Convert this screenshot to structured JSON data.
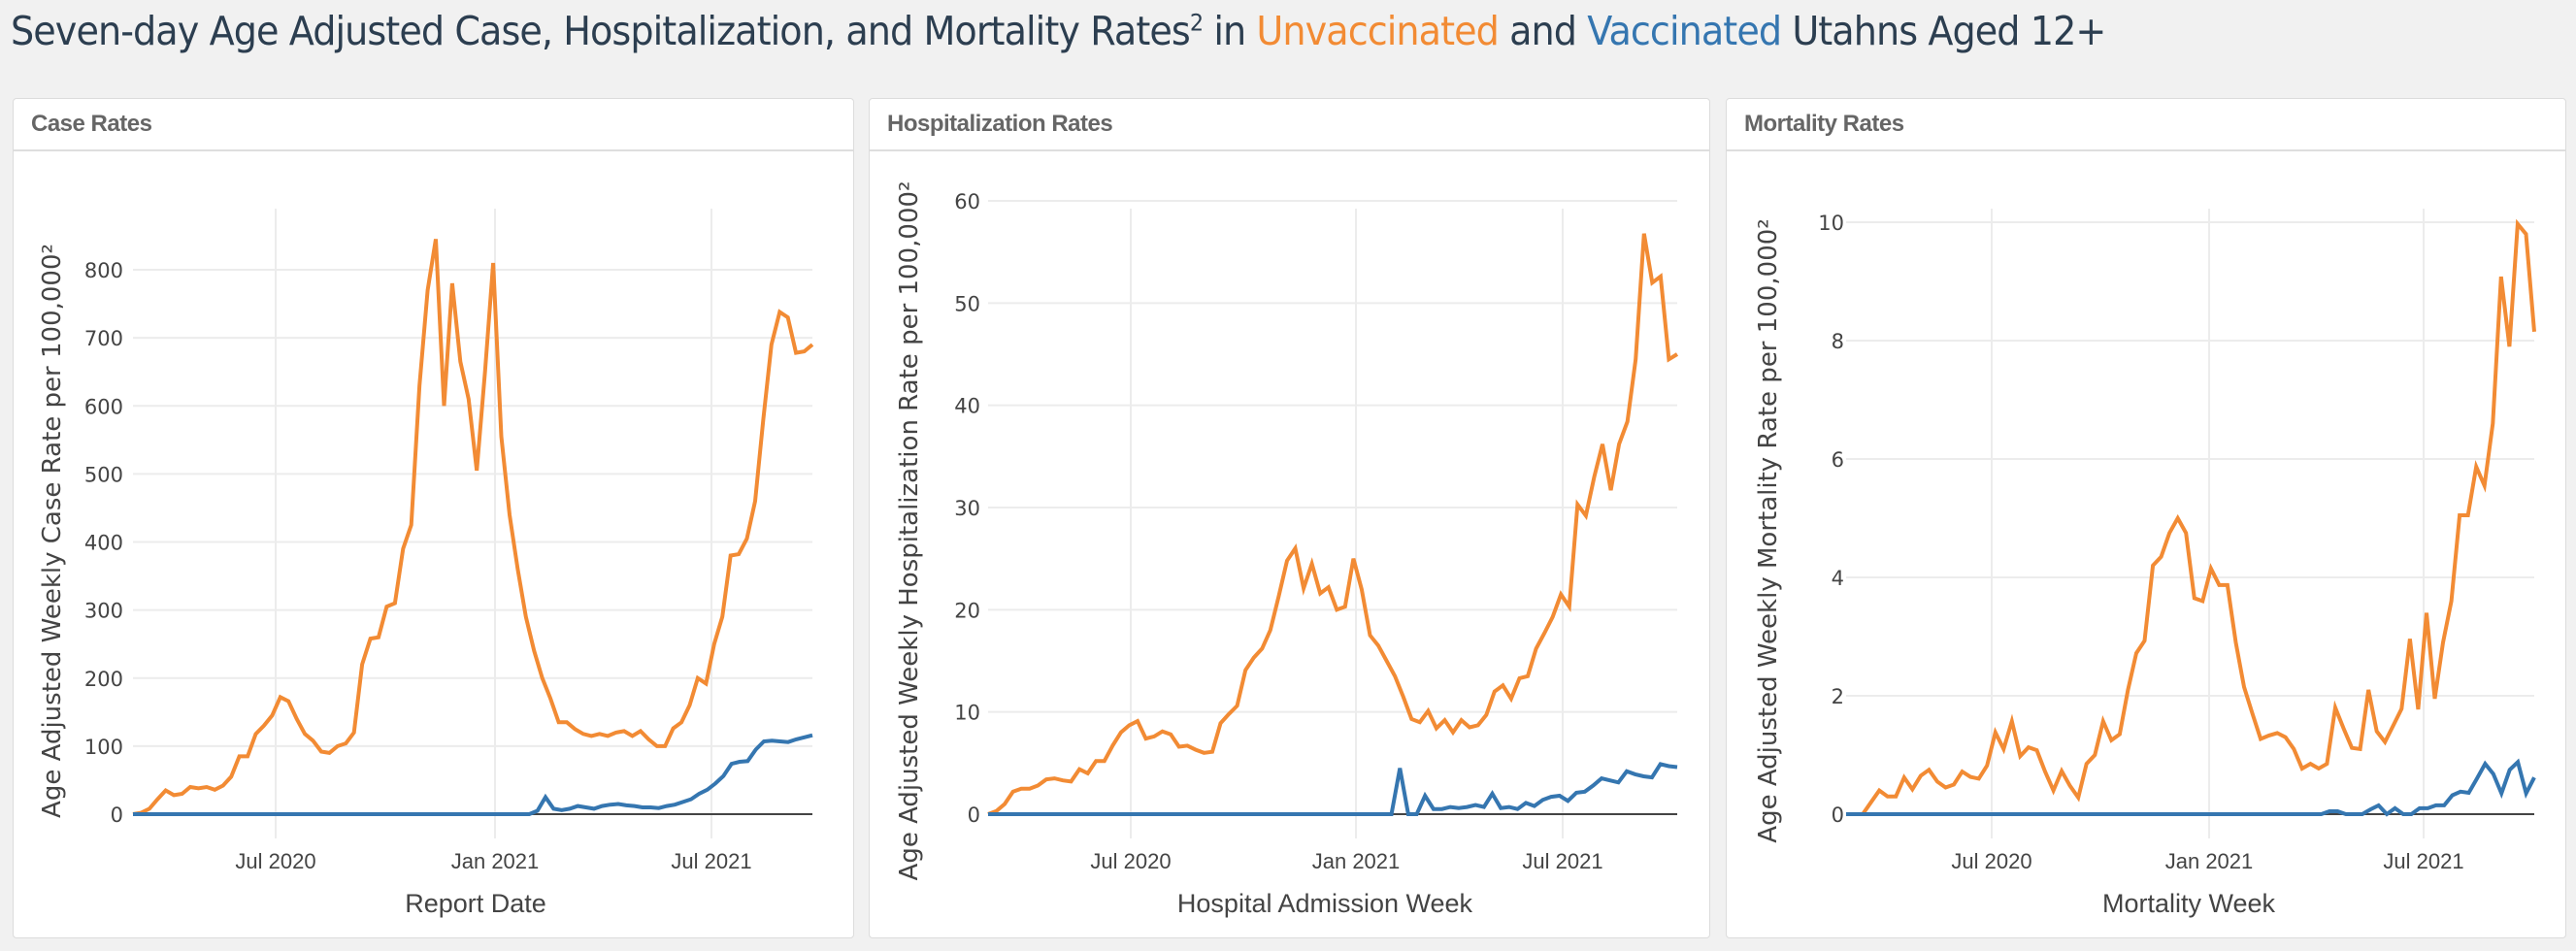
{
  "page": {
    "title_parts": {
      "prefix": "Seven-day Age Adjusted Case, Hospitalization, and Mortality Rates",
      "sup": "2",
      "in": " in ",
      "unvaccinated": "Unvaccinated",
      "and": " and ",
      "vaccinated": "Vaccinated",
      "suffix": " Utahns Aged 12+"
    }
  },
  "colors": {
    "unvaccinated": "#f28b34",
    "vaccinated": "#3576b0",
    "title_text": "#2c3e50"
  },
  "panels": [
    {
      "header": "Case Rates"
    },
    {
      "header": "Hospitalization Rates"
    },
    {
      "header": "Mortality Rates"
    }
  ],
  "chart_data": [
    {
      "type": "line",
      "title": "Case Rates",
      "xlabel": "Report Date",
      "ylabel": "Age Adjusted Weekly Case Rate per 100,000²",
      "x_start": "2020-03-15",
      "x_step_days": 7,
      "x_ticks": [
        "Jul 2020",
        "Jan 2021",
        "Jul 2021"
      ],
      "y_ticks": [
        0,
        100,
        200,
        300,
        400,
        500,
        600,
        700,
        800
      ],
      "ylim": [
        0,
        870
      ],
      "grid": true,
      "series": [
        {
          "name": "Unvaccinated",
          "values": [
            0,
            2,
            8,
            22,
            35,
            28,
            30,
            40,
            38,
            40,
            36,
            42,
            55,
            85,
            85,
            118,
            130,
            145,
            172,
            166,
            140,
            118,
            108,
            92,
            90,
            100,
            104,
            120,
            220,
            258,
            260,
            305,
            310,
            390,
            425,
            630,
            770,
            845,
            600,
            780,
            665,
            610,
            505,
            650,
            810,
            555,
            440,
            360,
            290,
            240,
            200,
            170,
            135,
            135,
            125,
            118,
            115,
            118,
            115,
            120,
            122,
            115,
            122,
            110,
            100,
            100,
            126,
            135,
            160,
            200,
            192,
            250,
            290,
            380,
            382,
            405,
            460,
            580,
            690,
            738,
            730,
            678,
            680,
            690
          ]
        },
        {
          "name": "Vaccinated",
          "values": [
            0,
            0,
            0,
            0,
            0,
            0,
            0,
            0,
            0,
            0,
            0,
            0,
            0,
            0,
            0,
            0,
            0,
            0,
            0,
            0,
            0,
            0,
            0,
            0,
            0,
            0,
            0,
            0,
            0,
            0,
            0,
            0,
            0,
            0,
            0,
            0,
            0,
            0,
            0,
            0,
            0,
            0,
            0,
            0,
            0,
            0,
            0,
            0,
            0,
            0,
            5,
            25,
            8,
            6,
            8,
            12,
            10,
            8,
            12,
            14,
            15,
            13,
            12,
            10,
            10,
            9,
            12,
            14,
            18,
            22,
            30,
            36,
            45,
            56,
            74,
            77,
            78,
            95,
            107,
            108,
            107,
            106,
            110,
            113,
            116
          ]
        }
      ]
    },
    {
      "type": "line",
      "title": "Hospitalization Rates",
      "xlabel": "Hospital Admission Week",
      "ylabel": "Age Adjusted Weekly Hospitalization Rate per 100,000²",
      "x_start": "2020-03-15",
      "x_step_days": 7,
      "x_ticks": [
        "Jul 2020",
        "Jan 2021",
        "Jul 2021"
      ],
      "y_ticks": [
        0,
        10,
        20,
        30,
        40,
        50,
        60
      ],
      "ylim": [
        0,
        63
      ],
      "grid": true,
      "series": [
        {
          "name": "Unvaccinated",
          "values": [
            0,
            0.3,
            1,
            2.2,
            2.5,
            2.5,
            2.8,
            3.4,
            3.5,
            3.3,
            3.2,
            4.4,
            4,
            5.2,
            5.2,
            6.7,
            8,
            8.7,
            9.1,
            7.4,
            7.6,
            8.1,
            7.8,
            6.6,
            6.7,
            6.3,
            6,
            6.1,
            8.9,
            9.8,
            10.6,
            14.1,
            15.3,
            16.2,
            18,
            21.3,
            24.8,
            26,
            22.1,
            24.5,
            21.6,
            22.2,
            20,
            20.3,
            25,
            22,
            17.5,
            16.5,
            15,
            13.5,
            11.5,
            9.3,
            9,
            10.1,
            8.4,
            9.2,
            8,
            9.2,
            8.5,
            8.7,
            9.7,
            12,
            12.6,
            11.3,
            13.3,
            13.5,
            16.2,
            17.7,
            19.3,
            21.5,
            20.3,
            30.3,
            29.2,
            33,
            36.2,
            31.7,
            36.2,
            38.4,
            44.5,
            56.8,
            52,
            52.6,
            44.5,
            45
          ]
        },
        {
          "name": "Vaccinated",
          "values": [
            0,
            0,
            0,
            0,
            0,
            0,
            0,
            0,
            0,
            0,
            0,
            0,
            0,
            0,
            0,
            0,
            0,
            0,
            0,
            0,
            0,
            0,
            0,
            0,
            0,
            0,
            0,
            0,
            0,
            0,
            0,
            0,
            0,
            0,
            0,
            0,
            0,
            0,
            0,
            0,
            0,
            0,
            0,
            0,
            0,
            0,
            0,
            0,
            0,
            4.5,
            0,
            0,
            1.8,
            0.5,
            0.5,
            0.7,
            0.6,
            0.7,
            0.9,
            0.7,
            2,
            0.6,
            0.7,
            0.5,
            1.1,
            0.8,
            1.4,
            1.7,
            1.8,
            1.3,
            2.1,
            2.2,
            2.8,
            3.5,
            3.3,
            3.1,
            4.2,
            3.9,
            3.7,
            3.6,
            4.9,
            4.7,
            4.6
          ]
        }
      ]
    },
    {
      "type": "line",
      "title": "Mortality Rates",
      "xlabel": "Mortality Week",
      "ylabel": "Age Adjusted Weekly Mortality Rate per 100,000²",
      "x_start": "2020-03-15",
      "x_step_days": 7,
      "x_ticks": [
        "Jul 2020",
        "Jan 2021",
        "Jul 2021"
      ],
      "y_ticks": [
        0,
        2,
        4,
        6,
        8,
        10
      ],
      "ylim": [
        0,
        10.5
      ],
      "grid": true,
      "series": [
        {
          "name": "Unvaccinated",
          "values": [
            0,
            0,
            0,
            0.2,
            0.4,
            0.3,
            0.3,
            0.62,
            0.42,
            0.65,
            0.75,
            0.55,
            0.45,
            0.5,
            0.72,
            0.63,
            0.6,
            0.82,
            1.38,
            1.1,
            1.57,
            0.98,
            1.13,
            1.08,
            0.72,
            0.4,
            0.73,
            0.48,
            0.28,
            0.85,
            1,
            1.57,
            1.25,
            1.35,
            2.1,
            2.72,
            2.93,
            4.2,
            4.35,
            4.75,
            5,
            4.75,
            3.65,
            3.6,
            4.15,
            3.87,
            3.87,
            2.9,
            2.15,
            1.7,
            1.27,
            1.33,
            1.37,
            1.3,
            1.1,
            0.77,
            0.85,
            0.77,
            0.85,
            1.8,
            1.45,
            1.12,
            1.1,
            2.1,
            1.4,
            1.22,
            1.5,
            1.78,
            2.96,
            1.77,
            3.4,
            1.95,
            2.9,
            3.6,
            5.05,
            5.05,
            5.87,
            5.55,
            6.6,
            9.08,
            7.9,
            9.97,
            9.8,
            8.15
          ]
        },
        {
          "name": "Vaccinated",
          "values": [
            0,
            0,
            0,
            0,
            0,
            0,
            0,
            0,
            0,
            0,
            0,
            0,
            0,
            0,
            0,
            0,
            0,
            0,
            0,
            0,
            0,
            0,
            0,
            0,
            0,
            0,
            0,
            0,
            0,
            0,
            0,
            0,
            0,
            0,
            0,
            0,
            0,
            0,
            0,
            0,
            0,
            0,
            0,
            0,
            0,
            0,
            0,
            0,
            0,
            0,
            0,
            0,
            0,
            0,
            0,
            0,
            0,
            0,
            0,
            0.05,
            0.05,
            0,
            0,
            0,
            0.08,
            0.15,
            0,
            0.1,
            0,
            0,
            0.1,
            0.1,
            0.15,
            0.15,
            0.32,
            0.38,
            0.36,
            0.6,
            0.85,
            0.68,
            0.35,
            0.75,
            0.88,
            0.35,
            0.62
          ]
        }
      ]
    }
  ]
}
